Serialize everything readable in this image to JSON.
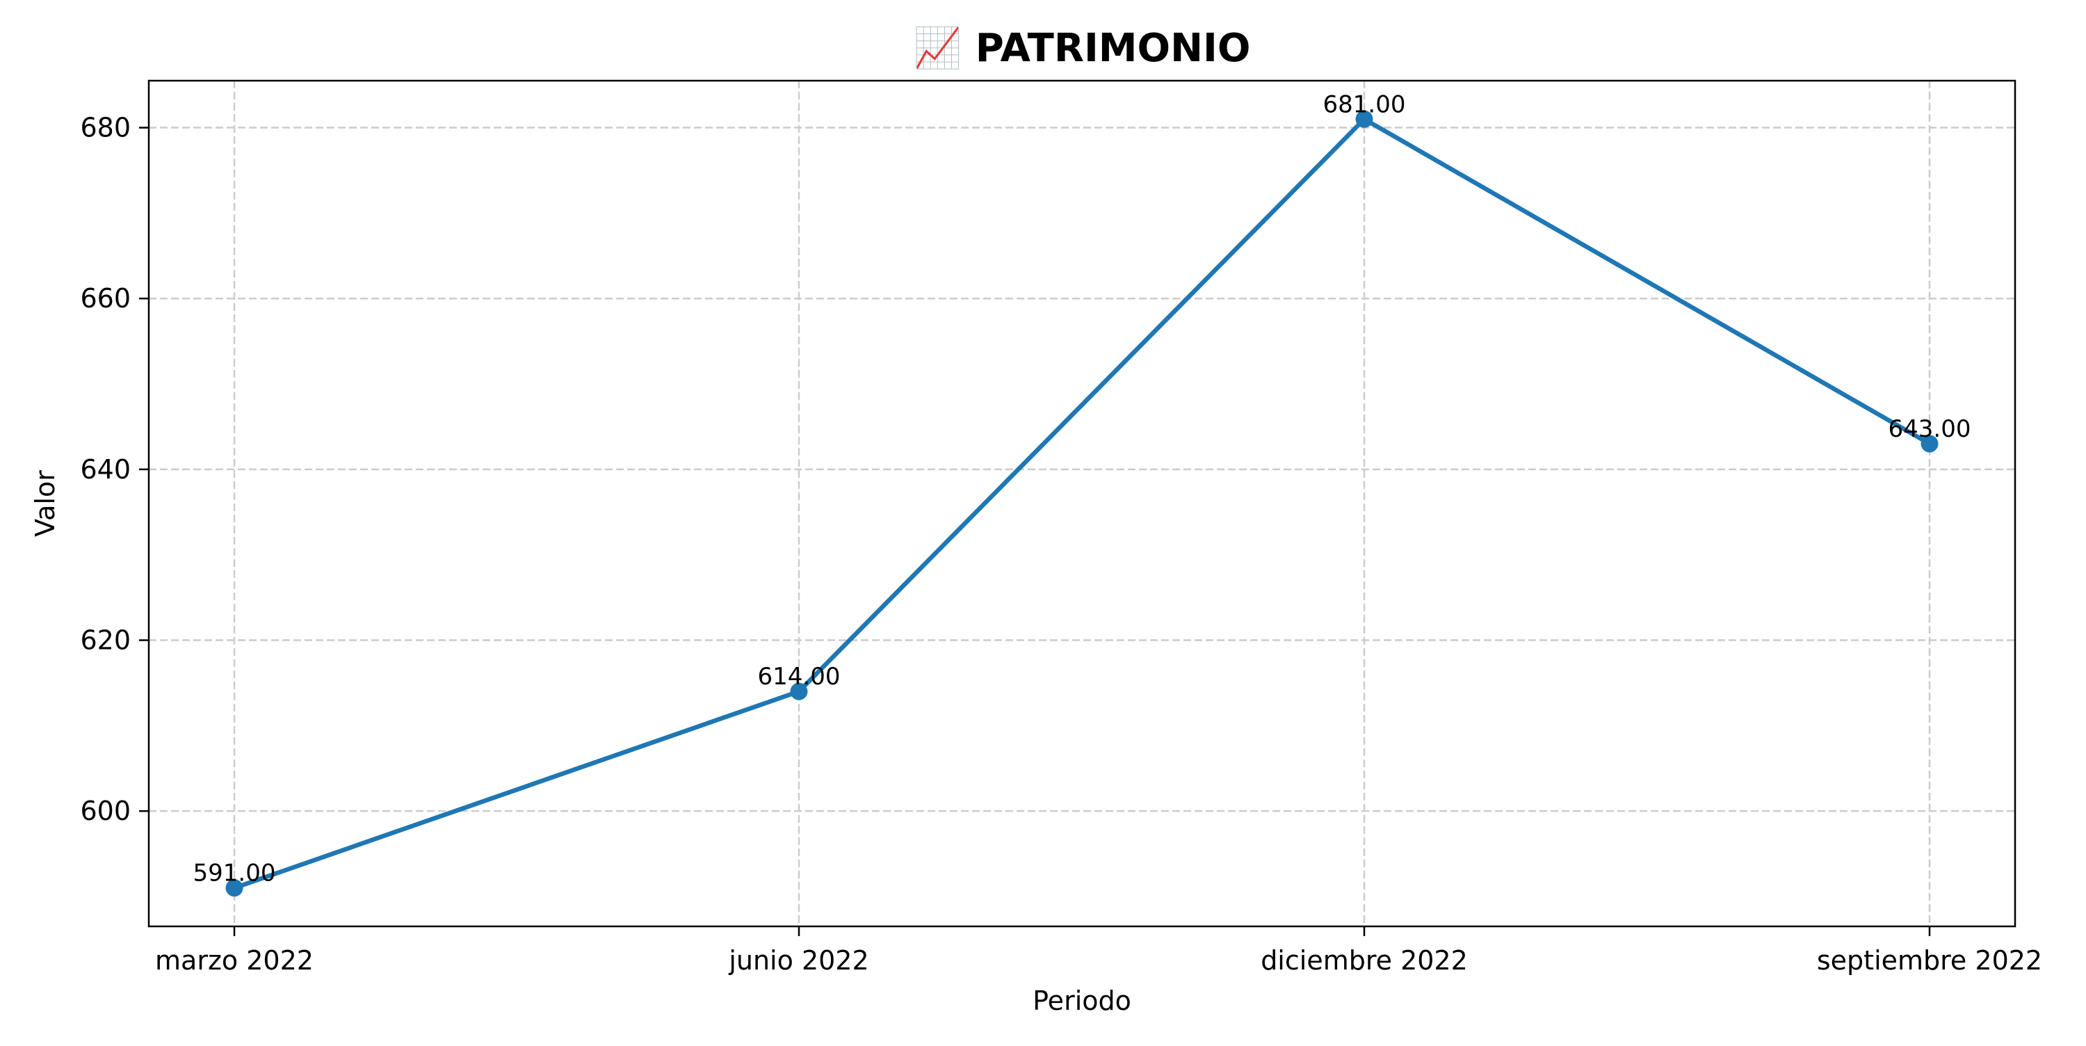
{
  "chart_data": {
    "type": "line",
    "title": "📈 PATRIMONIO",
    "xlabel": "Periodo",
    "ylabel": "Valor",
    "categories": [
      "marzo 2022",
      "junio 2022",
      "diciembre 2022",
      "septiembre 2022"
    ],
    "series": [
      {
        "values": [
          591.0,
          614.0,
          681.0,
          643.0
        ],
        "data_labels": [
          "591.00",
          "614.00",
          "681.00",
          "643.00"
        ],
        "color": "#1f77b4",
        "marker": "circle"
      }
    ],
    "ylim": [
      586.5,
      685.5
    ],
    "yticks": [
      600,
      620,
      640,
      660,
      680
    ],
    "ytick_labels": [
      "600",
      "620",
      "640",
      "660",
      "680"
    ],
    "grid": true,
    "grid_style": "dashed",
    "legend": "none"
  }
}
